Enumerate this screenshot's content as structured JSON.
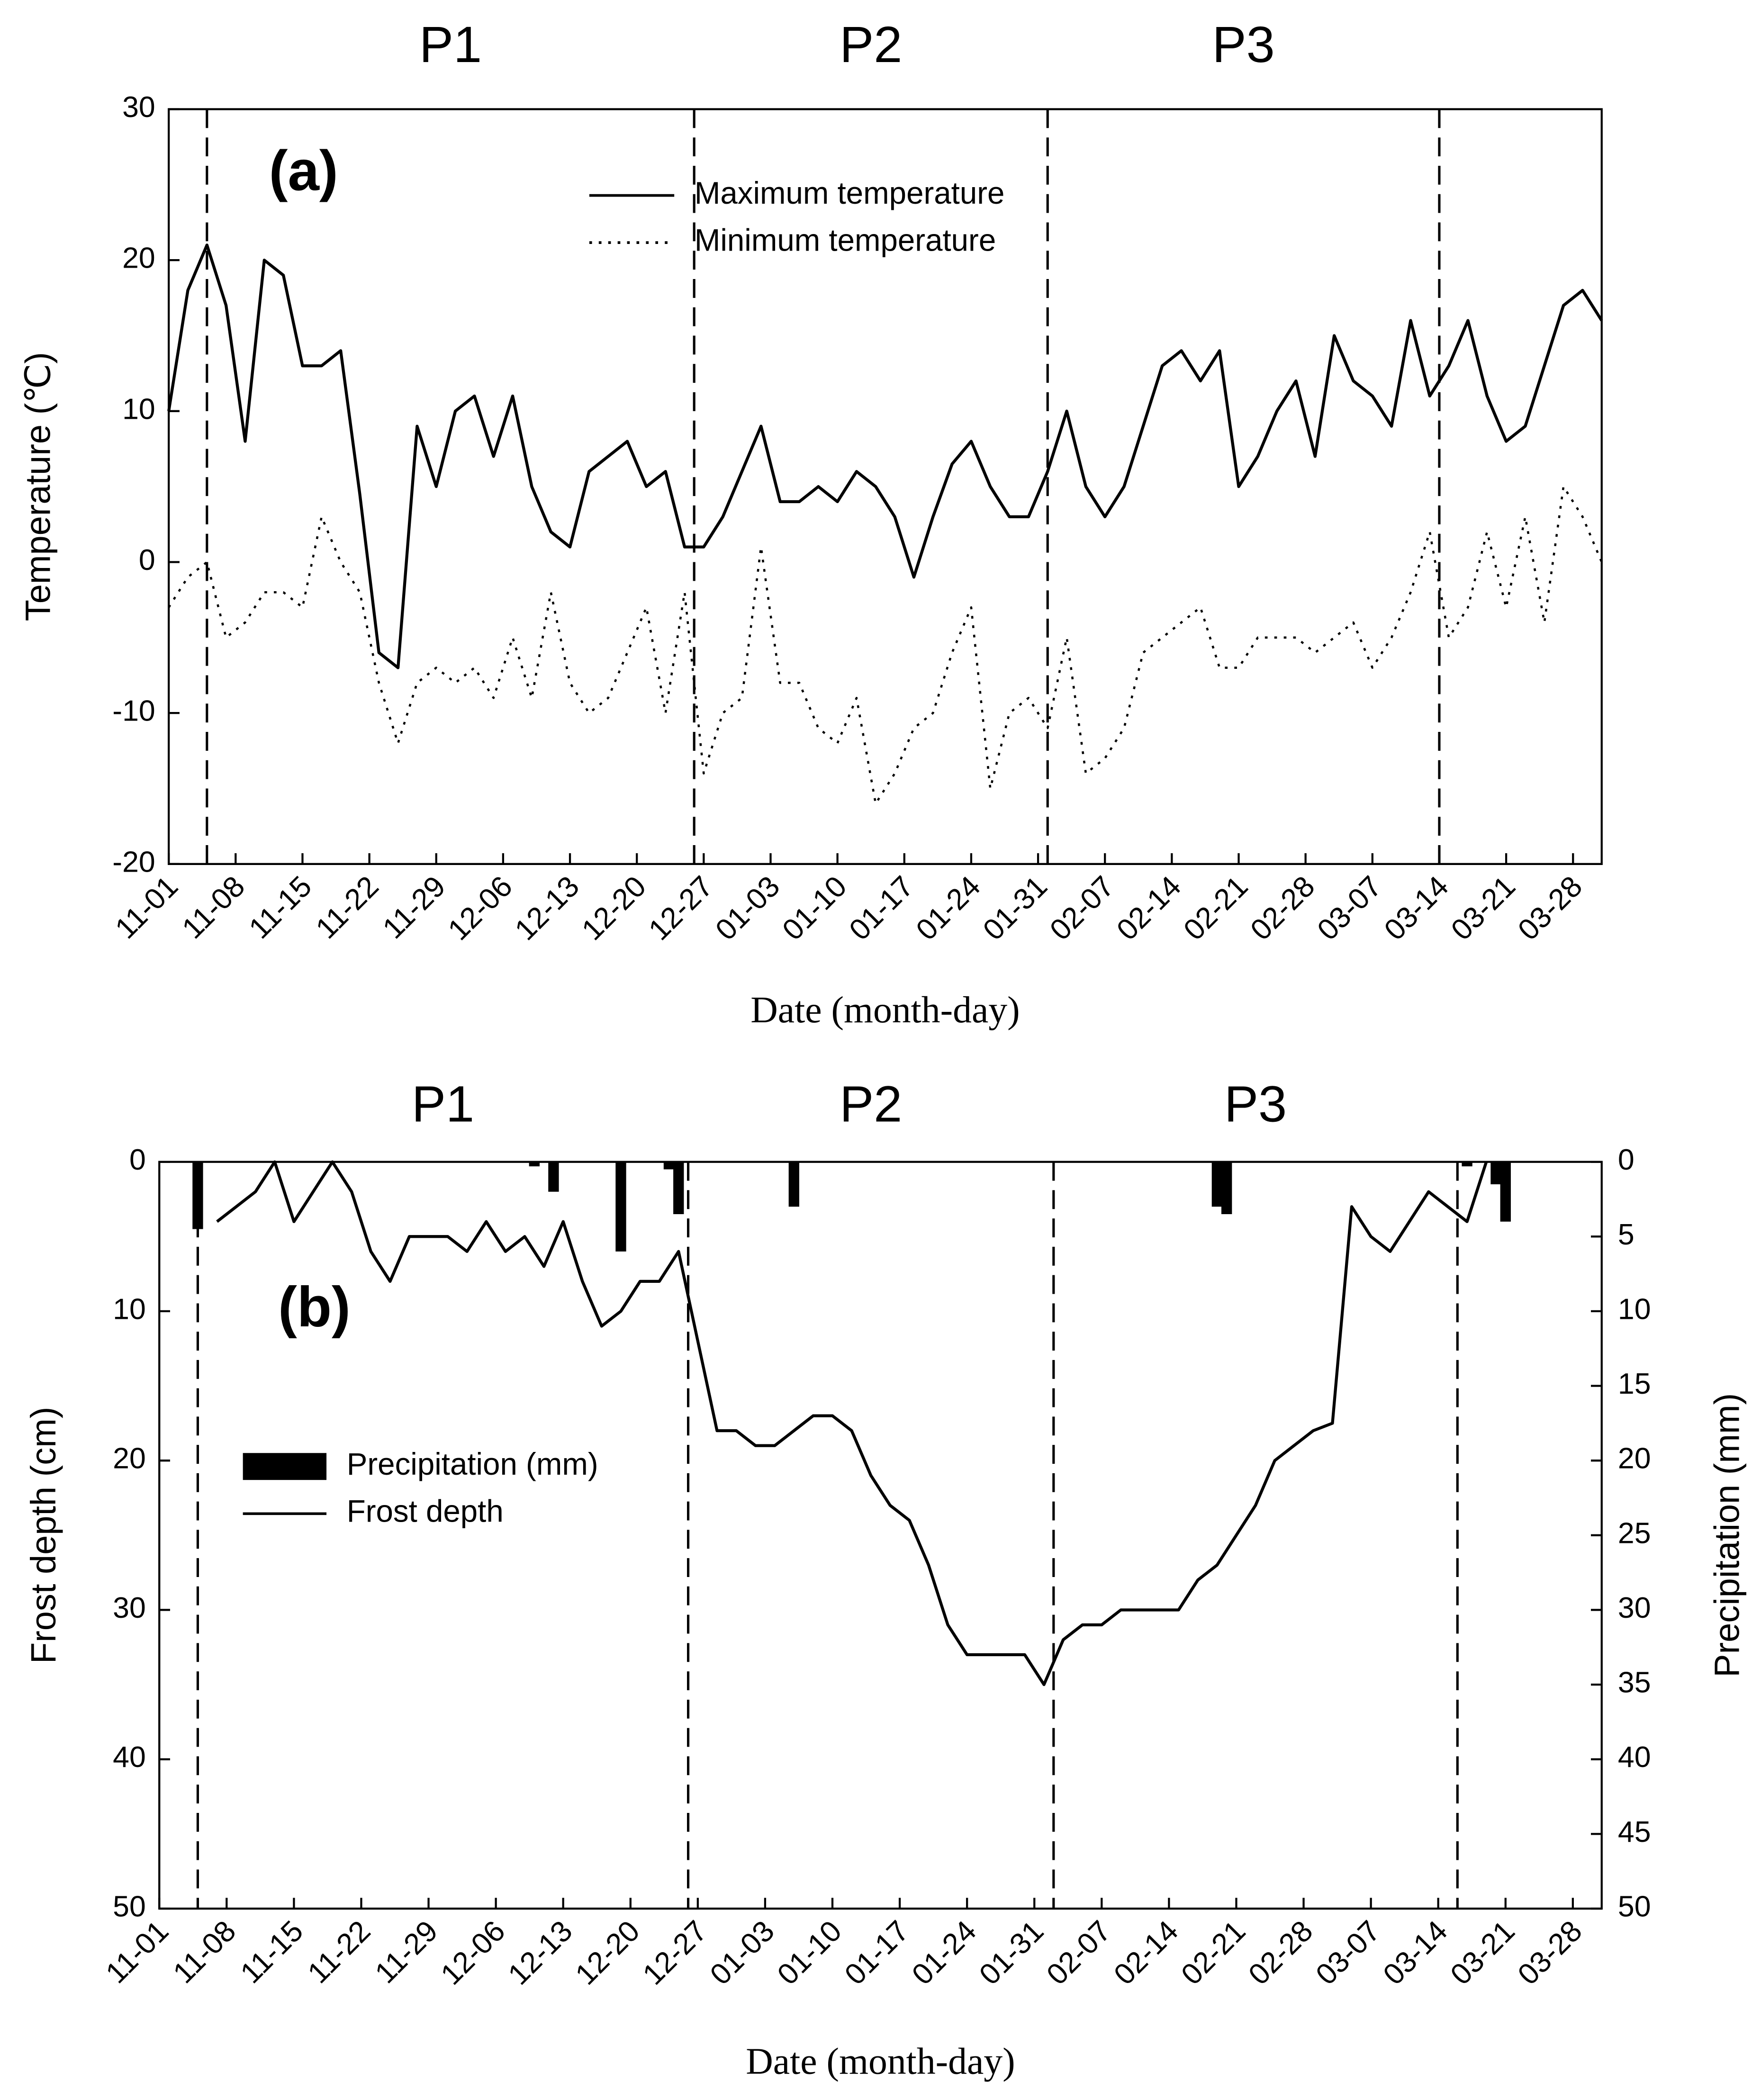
{
  "chart_data": [
    {
      "type": "line",
      "title": "(a)",
      "ylabel": "Temperature (℃)",
      "xlabel": "Date (month-day)",
      "periods": [
        "P1",
        "P2",
        "P3"
      ],
      "boundaries": [
        "11-05",
        "12-26",
        "02-01",
        "03-14"
      ],
      "xlim": [
        "11-01",
        "03-31"
      ],
      "xticks": [
        "11-01",
        "11-08",
        "11-15",
        "11-22",
        "11-29",
        "12-06",
        "12-13",
        "12-20",
        "12-27",
        "01-03",
        "01-10",
        "01-17",
        "01-24",
        "01-31",
        "02-07",
        "02-14",
        "02-21",
        "02-28",
        "03-07",
        "03-14",
        "03-21",
        "03-28"
      ],
      "ylim": [
        -20,
        30
      ],
      "yticks": [
        -20,
        -10,
        0,
        10,
        20,
        30
      ],
      "x": [
        "11-01",
        "11-03",
        "11-05",
        "11-07",
        "11-09",
        "11-11",
        "11-13",
        "11-15",
        "11-17",
        "11-19",
        "11-21",
        "11-23",
        "11-25",
        "11-27",
        "11-29",
        "12-01",
        "12-03",
        "12-05",
        "12-07",
        "12-09",
        "12-11",
        "12-13",
        "12-15",
        "12-17",
        "12-19",
        "12-21",
        "12-23",
        "12-25",
        "12-27",
        "12-29",
        "12-31",
        "01-02",
        "01-04",
        "01-06",
        "01-08",
        "01-10",
        "01-12",
        "01-14",
        "01-16",
        "01-18",
        "01-20",
        "01-22",
        "01-24",
        "01-26",
        "01-28",
        "01-30",
        "02-01",
        "02-03",
        "02-05",
        "02-07",
        "02-09",
        "02-11",
        "02-13",
        "02-15",
        "02-17",
        "02-19",
        "02-21",
        "02-23",
        "02-25",
        "02-27",
        "03-01",
        "03-03",
        "03-05",
        "03-07",
        "03-09",
        "03-11",
        "03-13",
        "03-15",
        "03-17",
        "03-19",
        "03-21",
        "03-23",
        "03-25",
        "03-27",
        "03-29",
        "03-31"
      ],
      "series": [
        {
          "name": "Maximum temperature",
          "color": "#000000",
          "line_style": "solid",
          "values": [
            10,
            18,
            21,
            17,
            8,
            20,
            19,
            13,
            13,
            14,
            4.5,
            -6,
            -7,
            9,
            5,
            10,
            11,
            7,
            11,
            5,
            2,
            1,
            6,
            7,
            8,
            5,
            6,
            1,
            1,
            3,
            6,
            9,
            4,
            4,
            5,
            4,
            6,
            5,
            3,
            -1,
            3,
            6.5,
            8,
            5,
            3,
            3,
            6,
            10,
            5,
            3,
            5,
            9,
            13,
            14,
            12,
            14,
            5,
            7,
            10,
            12,
            7,
            15,
            12,
            11,
            9,
            16,
            11,
            13,
            16,
            11,
            8,
            9,
            13,
            17,
            18,
            16
          ]
        },
        {
          "name": "Minimum temperature",
          "color": "#000000",
          "line_style": "dotted",
          "values": [
            -3,
            -1,
            0,
            -5,
            -4,
            -2,
            -2,
            -3,
            3,
            0,
            -2,
            -8,
            -12,
            -8,
            -7,
            -8,
            -7,
            -9,
            -5,
            -9,
            -2,
            -8,
            -10,
            -9,
            -6,
            -3,
            -10,
            -2,
            -14,
            -10,
            -9,
            1,
            -8,
            -8,
            -11,
            -12,
            -9,
            -16,
            -14,
            -11,
            -10,
            -6,
            -3,
            -15,
            -10,
            -9,
            -11,
            -5,
            -14,
            -13,
            -11,
            -6,
            -5,
            -4,
            -3,
            -7,
            -7,
            -5,
            -5,
            -5,
            -6,
            -5,
            -4,
            -7,
            -5,
            -2,
            2,
            -5,
            -3,
            2,
            -3,
            3,
            -4,
            5,
            3,
            0
          ]
        }
      ]
    },
    {
      "type": "bar_line",
      "title": "(b)",
      "ylabel": "Frost depth (cm)",
      "y2label": "Precipitation (mm)",
      "xlabel": "Date (month-day)",
      "periods": [
        "P1",
        "P2",
        "P3"
      ],
      "boundaries": [
        "11-05",
        "12-26",
        "02-02",
        "03-16"
      ],
      "xlim": [
        "11-01",
        "03-31"
      ],
      "xticks": [
        "11-01",
        "11-08",
        "11-15",
        "11-22",
        "11-29",
        "12-06",
        "12-13",
        "12-20",
        "12-27",
        "01-03",
        "01-10",
        "01-17",
        "01-24",
        "01-31",
        "02-07",
        "02-14",
        "02-21",
        "02-28",
        "03-07",
        "03-14",
        "03-21",
        "03-28"
      ],
      "ylim": [
        50,
        0
      ],
      "yticks": [
        0,
        10,
        20,
        30,
        40,
        50
      ],
      "y2lim": [
        50,
        0
      ],
      "y2ticks": [
        0,
        5,
        10,
        15,
        20,
        25,
        30,
        35,
        40,
        45,
        50
      ],
      "x": [
        "11-01",
        "11-03",
        "11-05",
        "11-07",
        "11-09",
        "11-11",
        "11-13",
        "11-15",
        "11-17",
        "11-19",
        "11-21",
        "11-23",
        "11-25",
        "11-27",
        "11-29",
        "12-01",
        "12-03",
        "12-05",
        "12-07",
        "12-09",
        "12-11",
        "12-13",
        "12-15",
        "12-17",
        "12-19",
        "12-21",
        "12-23",
        "12-25",
        "12-27",
        "12-29",
        "12-31",
        "01-02",
        "01-04",
        "01-06",
        "01-08",
        "01-10",
        "01-12",
        "01-14",
        "01-16",
        "01-18",
        "01-20",
        "01-22",
        "01-24",
        "01-26",
        "01-28",
        "01-30",
        "02-01",
        "02-03",
        "02-05",
        "02-07",
        "02-09",
        "02-11",
        "02-13",
        "02-15",
        "02-17",
        "02-19",
        "02-21",
        "02-23",
        "02-25",
        "02-27",
        "03-01",
        "03-03",
        "03-05",
        "03-07",
        "03-09",
        "03-11",
        "03-13",
        "03-15",
        "03-17",
        "03-19",
        "03-21",
        "03-23",
        "03-25",
        "03-27",
        "03-29",
        "03-31"
      ],
      "series": [
        {
          "name": "Precipitation (mm)",
          "color": "#000000",
          "kind": "bar",
          "axis": "y2",
          "x": [
            "11-05",
            "12-10",
            "12-12",
            "12-19",
            "12-24",
            "12-25",
            "01-06",
            "02-19",
            "02-20",
            "03-17",
            "03-20",
            "03-21"
          ],
          "values": [
            4.5,
            0.3,
            2,
            6,
            0.5,
            3.5,
            3,
            3,
            3.5,
            0.3,
            1.5,
            4
          ]
        },
        {
          "name": "Frost depth",
          "color": "#000000",
          "kind": "line",
          "line_style": "solid",
          "values": [
            null,
            null,
            null,
            4,
            3,
            2,
            0,
            4,
            2,
            0,
            2,
            6,
            8,
            5,
            5,
            5,
            6,
            4,
            6,
            5,
            7,
            4,
            8,
            11,
            10,
            8,
            8,
            6,
            12,
            18,
            18,
            19,
            19,
            18,
            17,
            17,
            18,
            21,
            23,
            24,
            27,
            31,
            33,
            33,
            33,
            33,
            35,
            32,
            31,
            31,
            30,
            30,
            30,
            30,
            28,
            27,
            25,
            23,
            20,
            19,
            18,
            17.5,
            3,
            5,
            6,
            4,
            2,
            3,
            4,
            0,
            null,
            null,
            null,
            null,
            null,
            null
          ]
        }
      ]
    }
  ]
}
